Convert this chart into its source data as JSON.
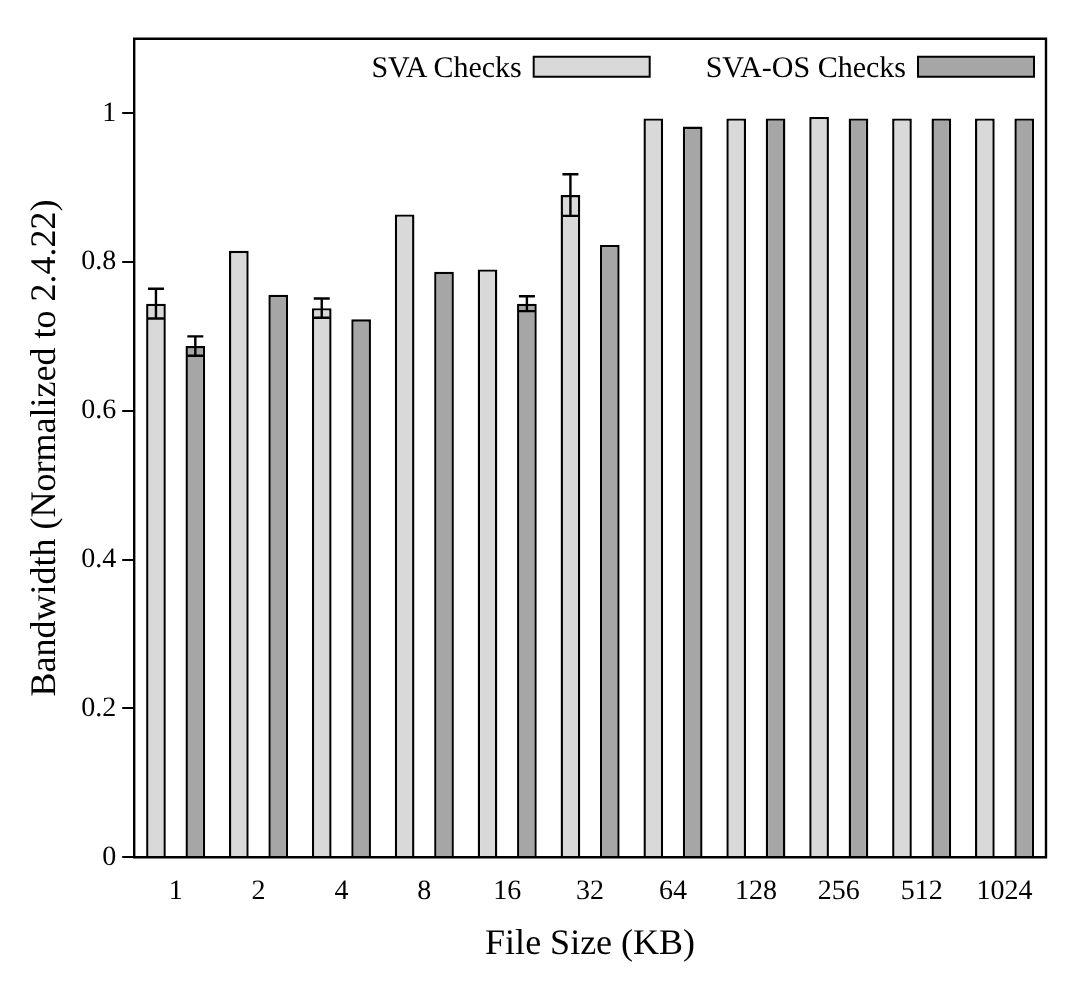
{
  "chart_data": {
    "type": "bar",
    "xlabel": "File Size (KB)",
    "ylabel": "Bandwidth (Normalized to 2.4.22)",
    "categories": [
      "1",
      "2",
      "4",
      "8",
      "16",
      "32",
      "64",
      "128",
      "256",
      "512",
      "1024"
    ],
    "series": [
      {
        "name": "SVA Checks",
        "color": "#d9d9d9",
        "values": [
          0.744,
          0.815,
          0.738,
          0.864,
          0.79,
          0.89,
          0.993,
          0.993,
          0.995,
          0.993,
          0.993
        ],
        "errors": [
          0.02,
          null,
          0.013,
          null,
          null,
          0.028,
          null,
          null,
          null,
          null,
          null
        ]
      },
      {
        "name": "SVA-OS Checks",
        "color": "#a6a6a6",
        "values": [
          0.687,
          0.756,
          0.723,
          0.787,
          0.744,
          0.823,
          0.982,
          0.993,
          0.993,
          0.993,
          0.993
        ],
        "errors": [
          0.013,
          null,
          null,
          null,
          0.01,
          null,
          null,
          null,
          null,
          null,
          null
        ]
      }
    ],
    "ylim": [
      0,
      1.1
    ],
    "yticks": [
      0,
      0.2,
      0.4,
      0.6,
      0.8,
      1
    ],
    "grid": false,
    "legend": "top right"
  }
}
